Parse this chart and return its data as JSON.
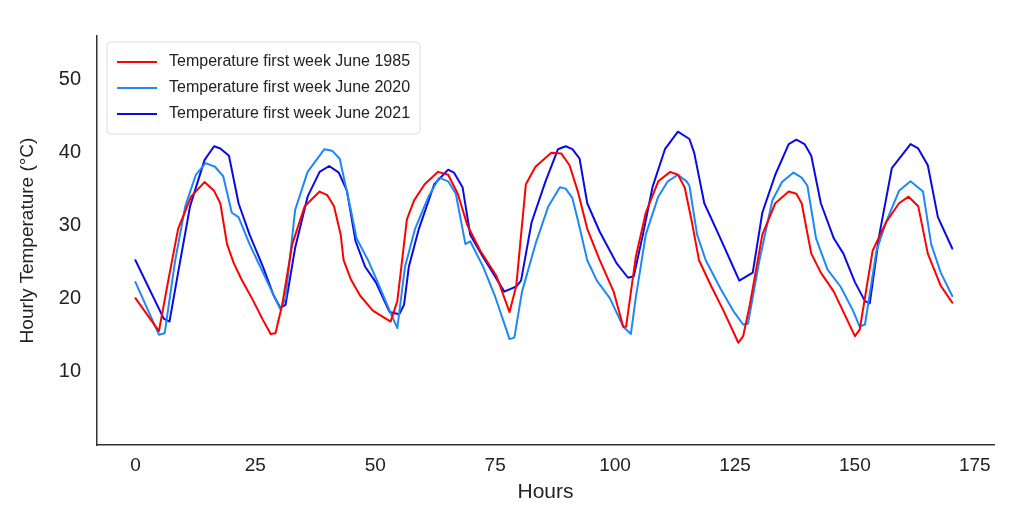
{
  "chart_data": {
    "type": "line",
    "xlabel": "Hours",
    "ylabel": "Hourly Temperature (°C)",
    "xlim": [
      -8,
      179
    ],
    "xticks": [
      0,
      25,
      50,
      75,
      100,
      125,
      150,
      175
    ],
    "ylim": [
      0,
      56
    ],
    "yticks": [
      10,
      20,
      30,
      40,
      50
    ],
    "grid": false,
    "legend": "top left",
    "marker": "none",
    "line_style": "solid",
    "series": [
      {
        "name": "Temperature first week June 1985",
        "color": "#ff0000",
        "x": [
          0,
          4.9,
          6.9,
          8.9,
          11.6,
          14.4,
          16.4,
          17.7,
          19.1,
          20.5,
          22.1,
          24.6,
          26.6,
          28.2,
          29.2,
          30.6,
          32.7,
          35.3,
          38.4,
          40.0,
          41.4,
          42.8,
          43.4,
          44.9,
          46.9,
          49.5,
          53.2,
          54.6,
          56.6,
          58.1,
          60.3,
          63.1,
          65.2,
          67.2,
          69.2,
          71.9,
          75.3,
          78.0,
          79.4,
          81.4,
          83.4,
          86.7,
          88.8,
          90.5,
          92.2,
          94.2,
          96.8,
          99.7,
          101.7,
          102.3,
          104.3,
          106.4,
          109.0,
          111.5,
          113.1,
          114.5,
          115.9,
          117.5,
          120.0,
          122.6,
          125.7,
          126.7,
          128.1,
          130.7,
          133.4,
          136.2,
          137.8,
          138.9,
          140.9,
          142.9,
          145.6,
          150.0,
          151.0,
          153.7,
          156.5,
          159.2,
          161.2,
          163.2,
          165.2,
          167.9,
          170.3
        ],
        "values": [
          20.1,
          15.6,
          22.7,
          29.6,
          34.0,
          36.0,
          34.8,
          33.1,
          27.5,
          24.9,
          22.7,
          19.7,
          17.1,
          15.2,
          15.3,
          19.2,
          27.5,
          32.7,
          34.7,
          34.2,
          32.7,
          28.8,
          25.3,
          22.7,
          20.4,
          18.4,
          16.9,
          19.7,
          30.9,
          33.5,
          35.7,
          37.4,
          37.0,
          34.4,
          30.1,
          26.6,
          23.1,
          18.2,
          21.8,
          35.7,
          38.1,
          40.0,
          39.9,
          38.3,
          34.8,
          29.6,
          25.3,
          21.0,
          16.2,
          16.2,
          25.7,
          31.8,
          36.1,
          37.4,
          37.0,
          35.3,
          30.9,
          25.3,
          21.8,
          18.4,
          14.0,
          14.9,
          19.2,
          28.8,
          33.1,
          34.7,
          34.4,
          33.1,
          26.2,
          23.6,
          21.0,
          14.9,
          15.8,
          26.6,
          30.5,
          33.1,
          34.0,
          32.7,
          26.2,
          21.8,
          19.5
        ]
      },
      {
        "name": "Temperature first week June 2020",
        "color": "#1e88f5",
        "x": [
          0,
          4.9,
          6.1,
          8.3,
          10.4,
          12.6,
          14.6,
          16.6,
          18.3,
          20.1,
          21.5,
          23.8,
          26.6,
          28.6,
          30.2,
          31.3,
          33.3,
          35.9,
          39.4,
          41.0,
          42.6,
          44.9,
          46.1,
          48.5,
          50.5,
          53.0,
          54.6,
          56.2,
          58.3,
          61.1,
          63.3,
          65.2,
          66.8,
          68.8,
          69.8,
          72.5,
          74.9,
          78.0,
          79.0,
          80.6,
          83.4,
          86.1,
          88.5,
          89.7,
          91.1,
          92.2,
          94.2,
          96.2,
          98.9,
          101.7,
          103.3,
          104.3,
          106.4,
          109.0,
          111.0,
          113.1,
          114.9,
          115.5,
          117.1,
          118.9,
          122.0,
          124.6,
          126.7,
          127.7,
          130.1,
          132.8,
          134.8,
          137.2,
          138.9,
          140.1,
          141.9,
          144.3,
          147.0,
          149.6,
          151.0,
          152.1,
          154.5,
          156.5,
          159.2,
          161.6,
          164.2,
          165.9,
          167.9,
          170.3
        ],
        "values": [
          22.3,
          15.1,
          15.3,
          25.3,
          32.7,
          37.0,
          38.6,
          38.1,
          36.8,
          31.8,
          31.2,
          27.5,
          23.6,
          20.8,
          18.6,
          20.1,
          32.2,
          37.4,
          40.5,
          40.3,
          39.2,
          32.2,
          28.3,
          25.3,
          22.3,
          18.4,
          16.0,
          24.4,
          29.6,
          34.0,
          36.6,
          36.1,
          34.4,
          27.5,
          27.9,
          24.4,
          20.5,
          14.5,
          14.7,
          21.0,
          27.5,
          32.7,
          35.3,
          35.1,
          33.8,
          30.9,
          25.3,
          22.5,
          20.1,
          16.2,
          15.2,
          20.1,
          28.8,
          34.0,
          36.1,
          37.0,
          36.1,
          35.5,
          28.8,
          25.3,
          21.4,
          18.4,
          16.5,
          16.6,
          25.3,
          33.5,
          36.0,
          37.3,
          36.6,
          35.5,
          28.3,
          24.0,
          21.7,
          18.4,
          16.2,
          16.5,
          26.6,
          30.5,
          34.8,
          36.1,
          34.7,
          27.5,
          23.6,
          20.4
        ]
      },
      {
        "name": "Temperature first week June 2021",
        "color": "#0a0ae6",
        "x": [
          0,
          5.9,
          7.1,
          8.9,
          11.4,
          14.4,
          16.4,
          17.7,
          19.5,
          21.5,
          23.8,
          26.6,
          28.8,
          30.2,
          31.3,
          33.3,
          35.9,
          38.4,
          40.4,
          42.4,
          44.1,
          45.9,
          47.9,
          50.1,
          53.0,
          55.0,
          56.0,
          57.0,
          59.1,
          62.3,
          65.2,
          66.4,
          68.2,
          69.8,
          72.5,
          74.5,
          76.9,
          79.4,
          80.4,
          82.6,
          85.5,
          88.1,
          89.7,
          91.1,
          92.6,
          94.2,
          96.8,
          100.3,
          102.7,
          103.9,
          105.8,
          107.8,
          110.4,
          113.1,
          115.5,
          116.5,
          118.6,
          121.6,
          124.0,
          125.9,
          128.7,
          130.7,
          133.4,
          136.2,
          137.8,
          139.5,
          140.9,
          142.9,
          145.6,
          147.6,
          150.0,
          152.1,
          153.1,
          155.1,
          157.7,
          161.6,
          163.2,
          165.2,
          167.3,
          170.3
        ],
        "values": [
          25.3,
          17.3,
          16.9,
          23.6,
          32.7,
          39.0,
          40.9,
          40.6,
          39.6,
          33.1,
          28.8,
          24.4,
          20.5,
          18.8,
          19.2,
          27.0,
          34.0,
          37.4,
          38.2,
          37.3,
          34.8,
          27.9,
          24.4,
          22.3,
          18.2,
          17.9,
          19.2,
          24.4,
          29.6,
          35.7,
          37.7,
          37.3,
          35.3,
          28.8,
          25.7,
          23.6,
          21.0,
          21.7,
          22.5,
          30.5,
          36.1,
          40.5,
          40.9,
          40.5,
          39.2,
          33.1,
          29.2,
          24.9,
          22.9,
          23.1,
          28.8,
          35.3,
          40.5,
          42.9,
          41.9,
          40.0,
          33.1,
          28.8,
          25.3,
          22.5,
          23.6,
          31.8,
          37.0,
          41.2,
          41.8,
          41.2,
          39.6,
          33.1,
          28.3,
          26.2,
          22.3,
          19.7,
          19.4,
          28.8,
          37.9,
          41.2,
          40.6,
          38.3,
          31.2,
          26.9
        ]
      }
    ]
  }
}
